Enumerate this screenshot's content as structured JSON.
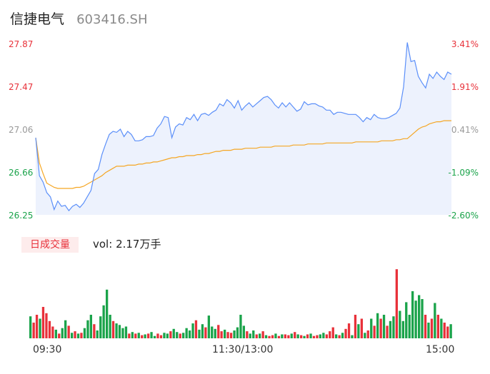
{
  "stock": {
    "name": "信捷电气",
    "code": "603416.SH"
  },
  "volume_panel": {
    "tab_label": "日成交量",
    "vol_label": "vol:",
    "vol_value": "2.17万手"
  },
  "colors": {
    "price_line": "#5b8ff9",
    "avg_line": "#f5a623",
    "up": "#e8313a",
    "down": "#1aa34a",
    "flat": "#999999",
    "area_fill": "#edf2fd"
  },
  "chart_data": {
    "type": "line",
    "prev_close": 27.06,
    "y_left_ticks": [
      "27.87",
      "27.47",
      "27.06",
      "26.66",
      "26.25"
    ],
    "y_right_ticks": [
      "3.41%",
      "1.91%",
      "0.41%",
      "-1.09%",
      "-2.60%"
    ],
    "ylim": [
      26.25,
      27.87
    ],
    "x_ticks": [
      "09:30",
      "11:30/13:00",
      "15:00"
    ],
    "series": [
      {
        "values": [
          26.98,
          26.62,
          26.56,
          26.46,
          26.42,
          26.3,
          26.38,
          26.33,
          26.34,
          26.29,
          26.33,
          26.35,
          26.32,
          26.36,
          26.42,
          26.48,
          26.64,
          26.68,
          26.82,
          26.92,
          27.01,
          27.04,
          27.03,
          27.06,
          26.99,
          27.04,
          27.01,
          26.95,
          26.95,
          26.96,
          26.99,
          26.99,
          27.0,
          27.07,
          27.11,
          27.18,
          27.17,
          26.98,
          27.08,
          27.11,
          27.1,
          27.17,
          27.15,
          27.2,
          27.14,
          27.2,
          27.21,
          27.19,
          27.22,
          27.24,
          27.3,
          27.28,
          27.34,
          27.31,
          27.26,
          27.33,
          27.24,
          27.28,
          27.31,
          27.27,
          27.3,
          27.33,
          27.36,
          27.37,
          27.34,
          27.29,
          27.26,
          27.31,
          27.27,
          27.31,
          27.27,
          27.23,
          27.25,
          27.32,
          27.29,
          27.3,
          27.3,
          27.28,
          27.27,
          27.24,
          27.24,
          27.2,
          27.22,
          27.22,
          27.21,
          27.2,
          27.2,
          27.2,
          27.17,
          27.13,
          27.17,
          27.15,
          27.2,
          27.17,
          27.16,
          27.16,
          27.17,
          27.19,
          27.21,
          27.26,
          27.46,
          27.88,
          27.7,
          27.71,
          27.56,
          27.5,
          27.45,
          27.58,
          27.54,
          27.6,
          27.56,
          27.53,
          27.6,
          27.58
        ]
      },
      {
        "values": [
          26.98,
          26.74,
          26.64,
          26.55,
          26.53,
          26.51,
          26.5,
          26.5,
          26.5,
          26.5,
          26.5,
          26.51,
          26.51,
          26.52,
          26.54,
          26.56,
          26.58,
          26.6,
          26.62,
          26.65,
          26.67,
          26.69,
          26.71,
          26.71,
          26.71,
          26.72,
          26.72,
          26.72,
          26.73,
          26.73,
          26.74,
          26.74,
          26.75,
          26.75,
          26.76,
          26.77,
          26.78,
          26.79,
          26.79,
          26.8,
          26.8,
          26.81,
          26.81,
          26.81,
          26.82,
          26.82,
          26.83,
          26.83,
          26.84,
          26.85,
          26.85,
          26.86,
          26.86,
          26.86,
          26.87,
          26.87,
          26.87,
          26.88,
          26.88,
          26.88,
          26.88,
          26.89,
          26.89,
          26.89,
          26.89,
          26.9,
          26.9,
          26.9,
          26.9,
          26.9,
          26.91,
          26.91,
          26.91,
          26.91,
          26.92,
          26.92,
          26.92,
          26.92,
          26.92,
          26.93,
          26.93,
          26.93,
          26.93,
          26.93,
          26.93,
          26.93,
          26.93,
          26.94,
          26.94,
          26.94,
          26.94,
          26.94,
          26.94,
          26.94,
          26.95,
          26.95,
          26.95,
          26.95,
          26.96,
          26.96,
          26.97,
          26.97,
          27.0,
          27.03,
          27.06,
          27.08,
          27.09,
          27.11,
          27.12,
          27.13,
          27.13,
          27.14,
          27.14,
          27.14
        ]
      }
    ]
  },
  "volume_data": {
    "type": "bar",
    "values": [
      0.28,
      0.2,
      0.3,
      0.25,
      0.4,
      0.32,
      0.22,
      0.15,
      0.11,
      0.06,
      0.13,
      0.23,
      0.16,
      0.07,
      0.09,
      0.06,
      0.07,
      0.13,
      0.23,
      0.3,
      0.18,
      0.1,
      0.28,
      0.42,
      0.62,
      0.3,
      0.22,
      0.19,
      0.17,
      0.13,
      0.15,
      0.06,
      0.08,
      0.06,
      0.07,
      0.04,
      0.05,
      0.06,
      0.08,
      0.03,
      0.06,
      0.04,
      0.07,
      0.06,
      0.09,
      0.12,
      0.08,
      0.06,
      0.07,
      0.13,
      0.1,
      0.19,
      0.23,
      0.11,
      0.18,
      0.14,
      0.29,
      0.15,
      0.12,
      0.17,
      0.09,
      0.11,
      0.08,
      0.07,
      0.1,
      0.14,
      0.3,
      0.16,
      0.09,
      0.06,
      0.1,
      0.05,
      0.06,
      0.09,
      0.04,
      0.03,
      0.04,
      0.06,
      0.03,
      0.05,
      0.05,
      0.04,
      0.06,
      0.08,
      0.05,
      0.04,
      0.03,
      0.05,
      0.06,
      0.03,
      0.04,
      0.05,
      0.07,
      0.05,
      0.09,
      0.14,
      0.05,
      0.04,
      0.07,
      0.12,
      0.19,
      0.04,
      0.3,
      0.18,
      0.25,
      0.07,
      0.1,
      0.25,
      0.16,
      0.32,
      0.25,
      0.3,
      0.16,
      0.22,
      0.28,
      0.88,
      0.35,
      0.22,
      0.46,
      0.3,
      0.6,
      0.48,
      0.55,
      0.5,
      0.3,
      0.2,
      0.25,
      0.45,
      0.3,
      0.25,
      0.2,
      0.15,
      0.18
    ],
    "up": [
      0,
      1,
      1,
      0,
      1,
      1,
      1,
      1,
      0,
      1,
      0,
      0,
      1,
      0,
      1,
      0,
      1,
      0,
      0,
      0,
      1,
      0,
      0,
      0,
      0,
      0,
      1,
      0,
      0,
      0,
      0,
      1,
      0,
      1,
      0,
      1,
      0,
      1,
      0,
      0,
      1,
      1,
      0,
      0,
      1,
      0,
      0,
      1,
      0,
      0,
      0,
      0,
      1,
      0,
      0,
      1,
      0,
      0,
      0,
      1,
      1,
      0,
      1,
      1,
      0,
      0,
      0,
      0,
      1,
      0,
      0,
      1,
      0,
      1,
      0,
      1,
      1,
      0,
      1,
      0,
      1,
      1,
      0,
      1,
      0,
      1,
      0,
      1,
      0,
      1,
      1,
      0,
      0,
      1,
      1,
      1,
      0,
      1,
      0,
      1,
      1,
      0,
      1,
      0,
      1,
      0,
      1,
      0,
      1,
      0,
      1,
      0,
      1,
      0,
      0,
      1,
      0,
      0,
      0,
      0,
      0,
      0,
      0,
      0,
      1,
      0,
      1,
      0,
      1,
      0,
      1,
      1
    ]
  }
}
